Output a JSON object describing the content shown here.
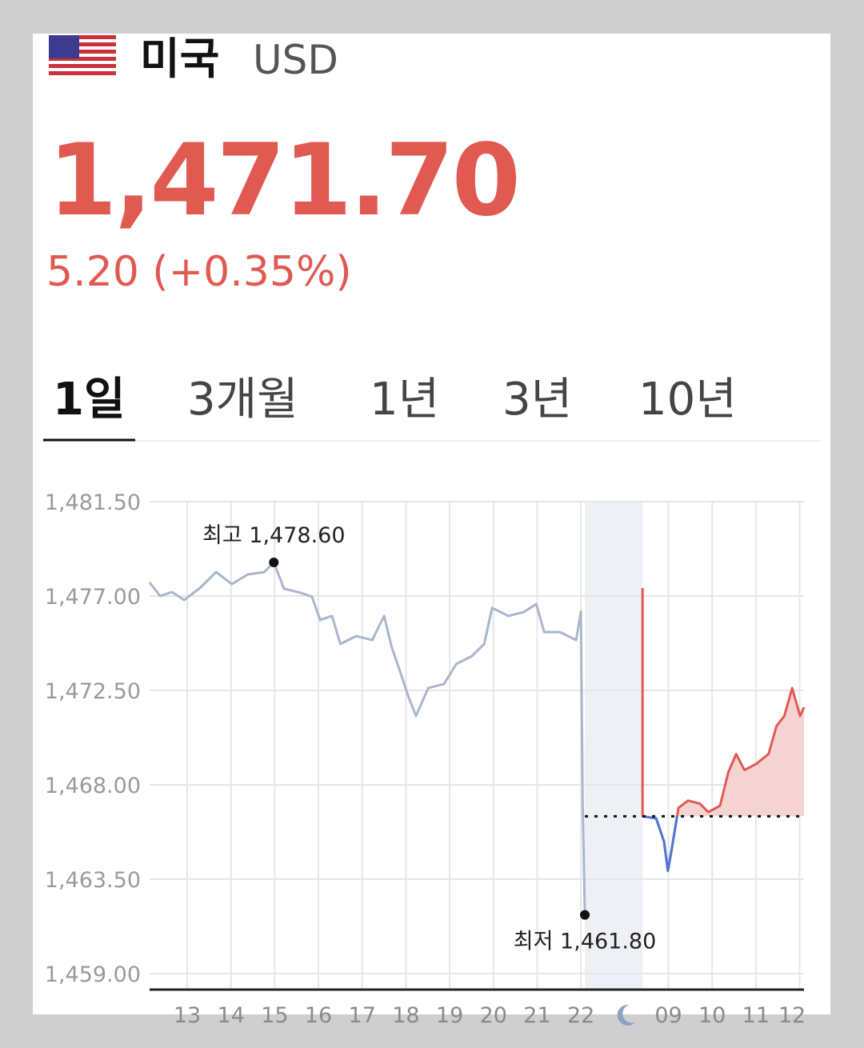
{
  "header": {
    "country": "미국",
    "currency": "USD",
    "price": "1,471.70",
    "change": "5.20 (+0.35%)"
  },
  "tabs": [
    "1일",
    "3개월",
    "1년",
    "3년",
    "10년"
  ],
  "chart_data": {
    "type": "line",
    "ylim": [
      1459,
      1481.5
    ],
    "yticks": [
      {
        "value": 1481.5,
        "label": "1,481.50"
      },
      {
        "value": 1477,
        "label": "1,477.00"
      },
      {
        "value": 1472.5,
        "label": "1,472.50"
      },
      {
        "value": 1468,
        "label": "1,468.00"
      },
      {
        "value": 1463.5,
        "label": "1,463.50"
      },
      {
        "value": 1459,
        "label": "1,459.00"
      }
    ],
    "xlim": [
      12.14,
      27.1
    ],
    "xticks": [
      13,
      14,
      15,
      16,
      17,
      18,
      19,
      20,
      21,
      22,
      {
        "value": 24,
        "label": "09"
      },
      {
        "value": 25,
        "label": "10"
      },
      {
        "value": 26,
        "label": "11"
      },
      {
        "value": 27,
        "label": "12"
      }
    ],
    "grid": true,
    "baseline": 1466.5,
    "closed_band": [
      22.09,
      23.41
    ],
    "series": [
      {
        "color": "#a9b6cc",
        "x": [
          12.14,
          12.38,
          12.65,
          12.93,
          13.29,
          13.66,
          14.02,
          14.39,
          14.76,
          14.98,
          15.21,
          15.58,
          15.85,
          16.04,
          16.31,
          16.5,
          16.86,
          17.23,
          17.5,
          17.68,
          17.87,
          18.05,
          18.23,
          18.51,
          18.87,
          19.15,
          19.51,
          19.79,
          19.97,
          20.34,
          20.7,
          20.98,
          21.16,
          21.52,
          21.89,
          22.0,
          22.04,
          22.09
        ],
        "values": [
          1477.65,
          1477.0,
          1477.19,
          1476.81,
          1477.38,
          1478.14,
          1477.57,
          1478.03,
          1478.14,
          1478.6,
          1477.35,
          1477.16,
          1476.97,
          1475.86,
          1476.05,
          1474.71,
          1475.09,
          1474.9,
          1476.05,
          1474.52,
          1473.38,
          1472.23,
          1471.28,
          1472.61,
          1472.8,
          1473.76,
          1474.14,
          1474.71,
          1476.43,
          1476.05,
          1476.24,
          1476.62,
          1475.28,
          1475.28,
          1474.9,
          1476.24,
          1467.28,
          1461.8
        ]
      },
      {
        "color": "#e05a52",
        "color_down": "#4a78d6",
        "fill": "#f6d3d3",
        "x": [
          23.41,
          23.41,
          23.72,
          23.9,
          23.99,
          24.08,
          24.23,
          24.45,
          24.72,
          24.91,
          25.18,
          25.37,
          25.55,
          25.74,
          26.01,
          26.29,
          26.47,
          26.65,
          26.83,
          27.01,
          27.1
        ],
        "values": [
          1477.38,
          1466.5,
          1466.4,
          1465.3,
          1463.9,
          1465.0,
          1466.9,
          1467.25,
          1467.1,
          1466.7,
          1467.0,
          1468.6,
          1469.47,
          1468.7,
          1469.0,
          1469.47,
          1470.8,
          1471.28,
          1472.61,
          1471.28,
          1471.7
        ]
      }
    ],
    "annotations": [
      {
        "text": "최고 1,478.60",
        "x": 14.98,
        "value": 1478.6
      },
      {
        "text": "최저 1,461.80",
        "x": 22.09,
        "value": 1461.8
      }
    ]
  }
}
